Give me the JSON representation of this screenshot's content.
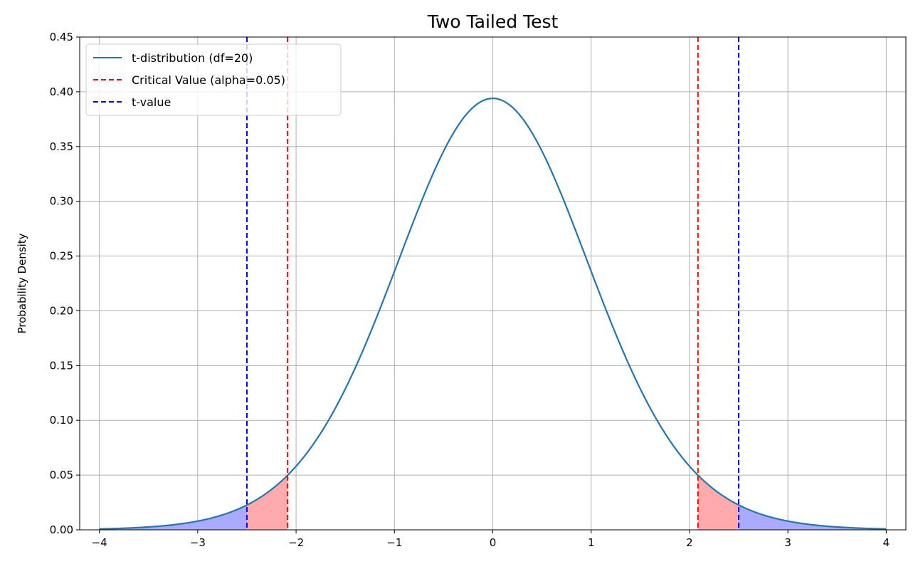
{
  "chart_data": {
    "type": "line",
    "title": "Two Tailed Test",
    "xlabel": "",
    "ylabel": "Probability Density",
    "xlim": [
      -4.2,
      4.2
    ],
    "ylim": [
      0,
      0.45
    ],
    "xticks": [
      -4,
      -3,
      -2,
      -1,
      0,
      1,
      2,
      3,
      4
    ],
    "xtick_labels": [
      "−4",
      "−3",
      "−2",
      "−1",
      "0",
      "1",
      "2",
      "3",
      "4"
    ],
    "yticks": [
      0.0,
      0.05,
      0.1,
      0.15,
      0.2,
      0.25,
      0.3,
      0.35,
      0.4,
      0.45
    ],
    "ytick_labels": [
      "0.00",
      "0.05",
      "0.10",
      "0.15",
      "0.20",
      "0.25",
      "0.30",
      "0.35",
      "0.40",
      "0.45"
    ],
    "grid": true,
    "legend_position": "upper-left",
    "df": 20,
    "x_range": [
      -4,
      4
    ],
    "series": [
      {
        "name": "t-distribution (df=20)",
        "kind": "curve",
        "color": "#1f77b4"
      },
      {
        "name": "Critical Value (alpha=0.05)",
        "kind": "vline",
        "x": [
          -2.086,
          2.086
        ],
        "color": "#ff0000"
      },
      {
        "name": "t-value",
        "kind": "vline",
        "x": [
          -2.5,
          2.5
        ],
        "color": "#0000ff"
      }
    ],
    "shaded_regions": [
      {
        "from": -4,
        "to": -2.5,
        "color": "#aaaaff"
      },
      {
        "from": -2.5,
        "to": -2.086,
        "color": "#ffaaaa"
      },
      {
        "from": 2.086,
        "to": 2.5,
        "color": "#ffaaaa"
      },
      {
        "from": 2.5,
        "to": 4,
        "color": "#aaaaff"
      }
    ]
  }
}
